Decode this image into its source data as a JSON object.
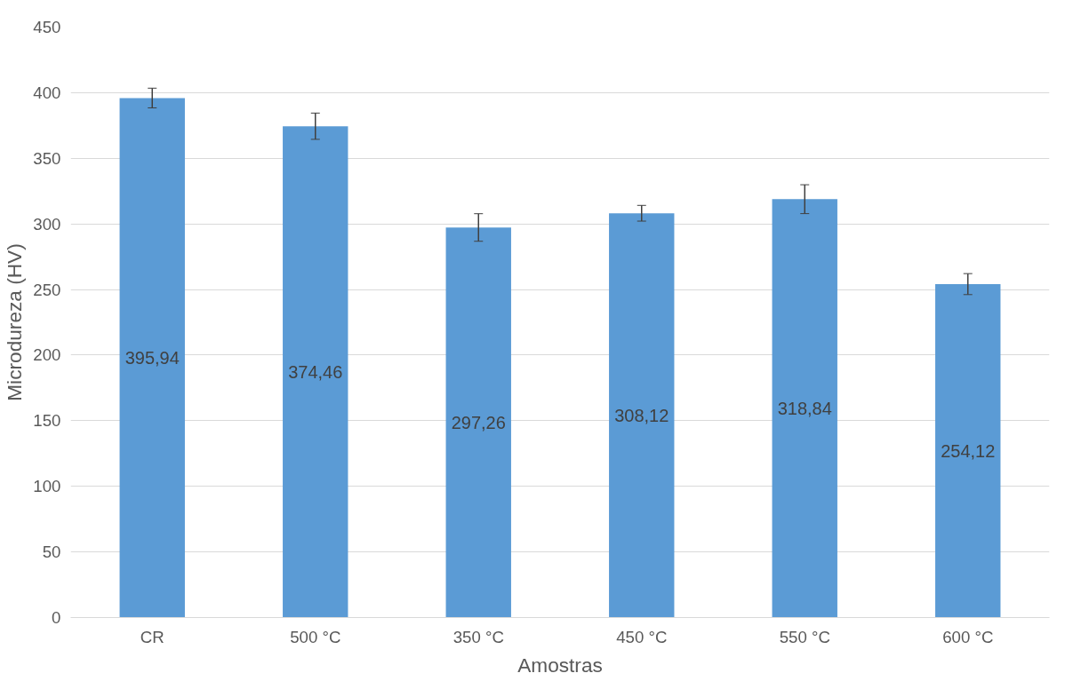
{
  "chart_data": {
    "type": "bar",
    "xlabel": "Amostras",
    "ylabel": "Microdureza (HV)",
    "categories": [
      "CR",
      "500 °C",
      "350 °C",
      "450 °C",
      "550 °C",
      "600 °C"
    ],
    "values": [
      395.94,
      374.46,
      297.26,
      308.12,
      318.84,
      254.12
    ],
    "value_labels": [
      "395,94",
      "374,46",
      "297,26",
      "308,12",
      "318,84",
      "254,12"
    ],
    "errors": [
      7.5,
      10,
      10.5,
      6,
      11,
      8
    ],
    "color": "#5b9bd5",
    "ylim": [
      0,
      450
    ],
    "yticks": [
      0,
      50,
      100,
      150,
      200,
      250,
      300,
      350,
      400,
      450
    ],
    "grid": "y"
  }
}
